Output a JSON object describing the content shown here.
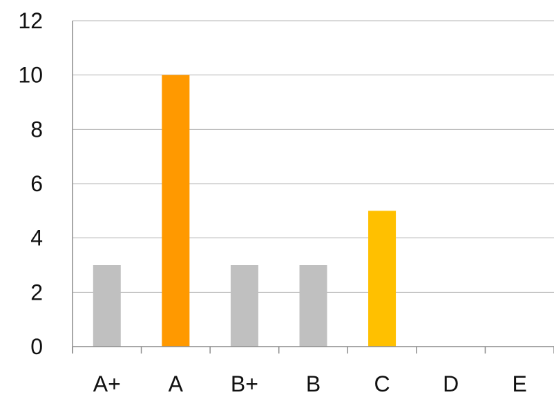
{
  "chart_data": {
    "type": "bar",
    "categories": [
      "A+",
      "A",
      "B+",
      "B",
      "C",
      "D",
      "E"
    ],
    "values": [
      3,
      10,
      3,
      3,
      5,
      0,
      0
    ],
    "colors": [
      "#c0c0c0",
      "#ff9900",
      "#c0c0c0",
      "#c0c0c0",
      "#ffc000",
      "#c0c0c0",
      "#c0c0c0"
    ],
    "ylim": [
      0,
      12
    ],
    "yticks": [
      0,
      2,
      4,
      6,
      8,
      10,
      12
    ],
    "title": "",
    "xlabel": "",
    "ylabel": "",
    "grid": "horizontal",
    "legend": "none"
  }
}
